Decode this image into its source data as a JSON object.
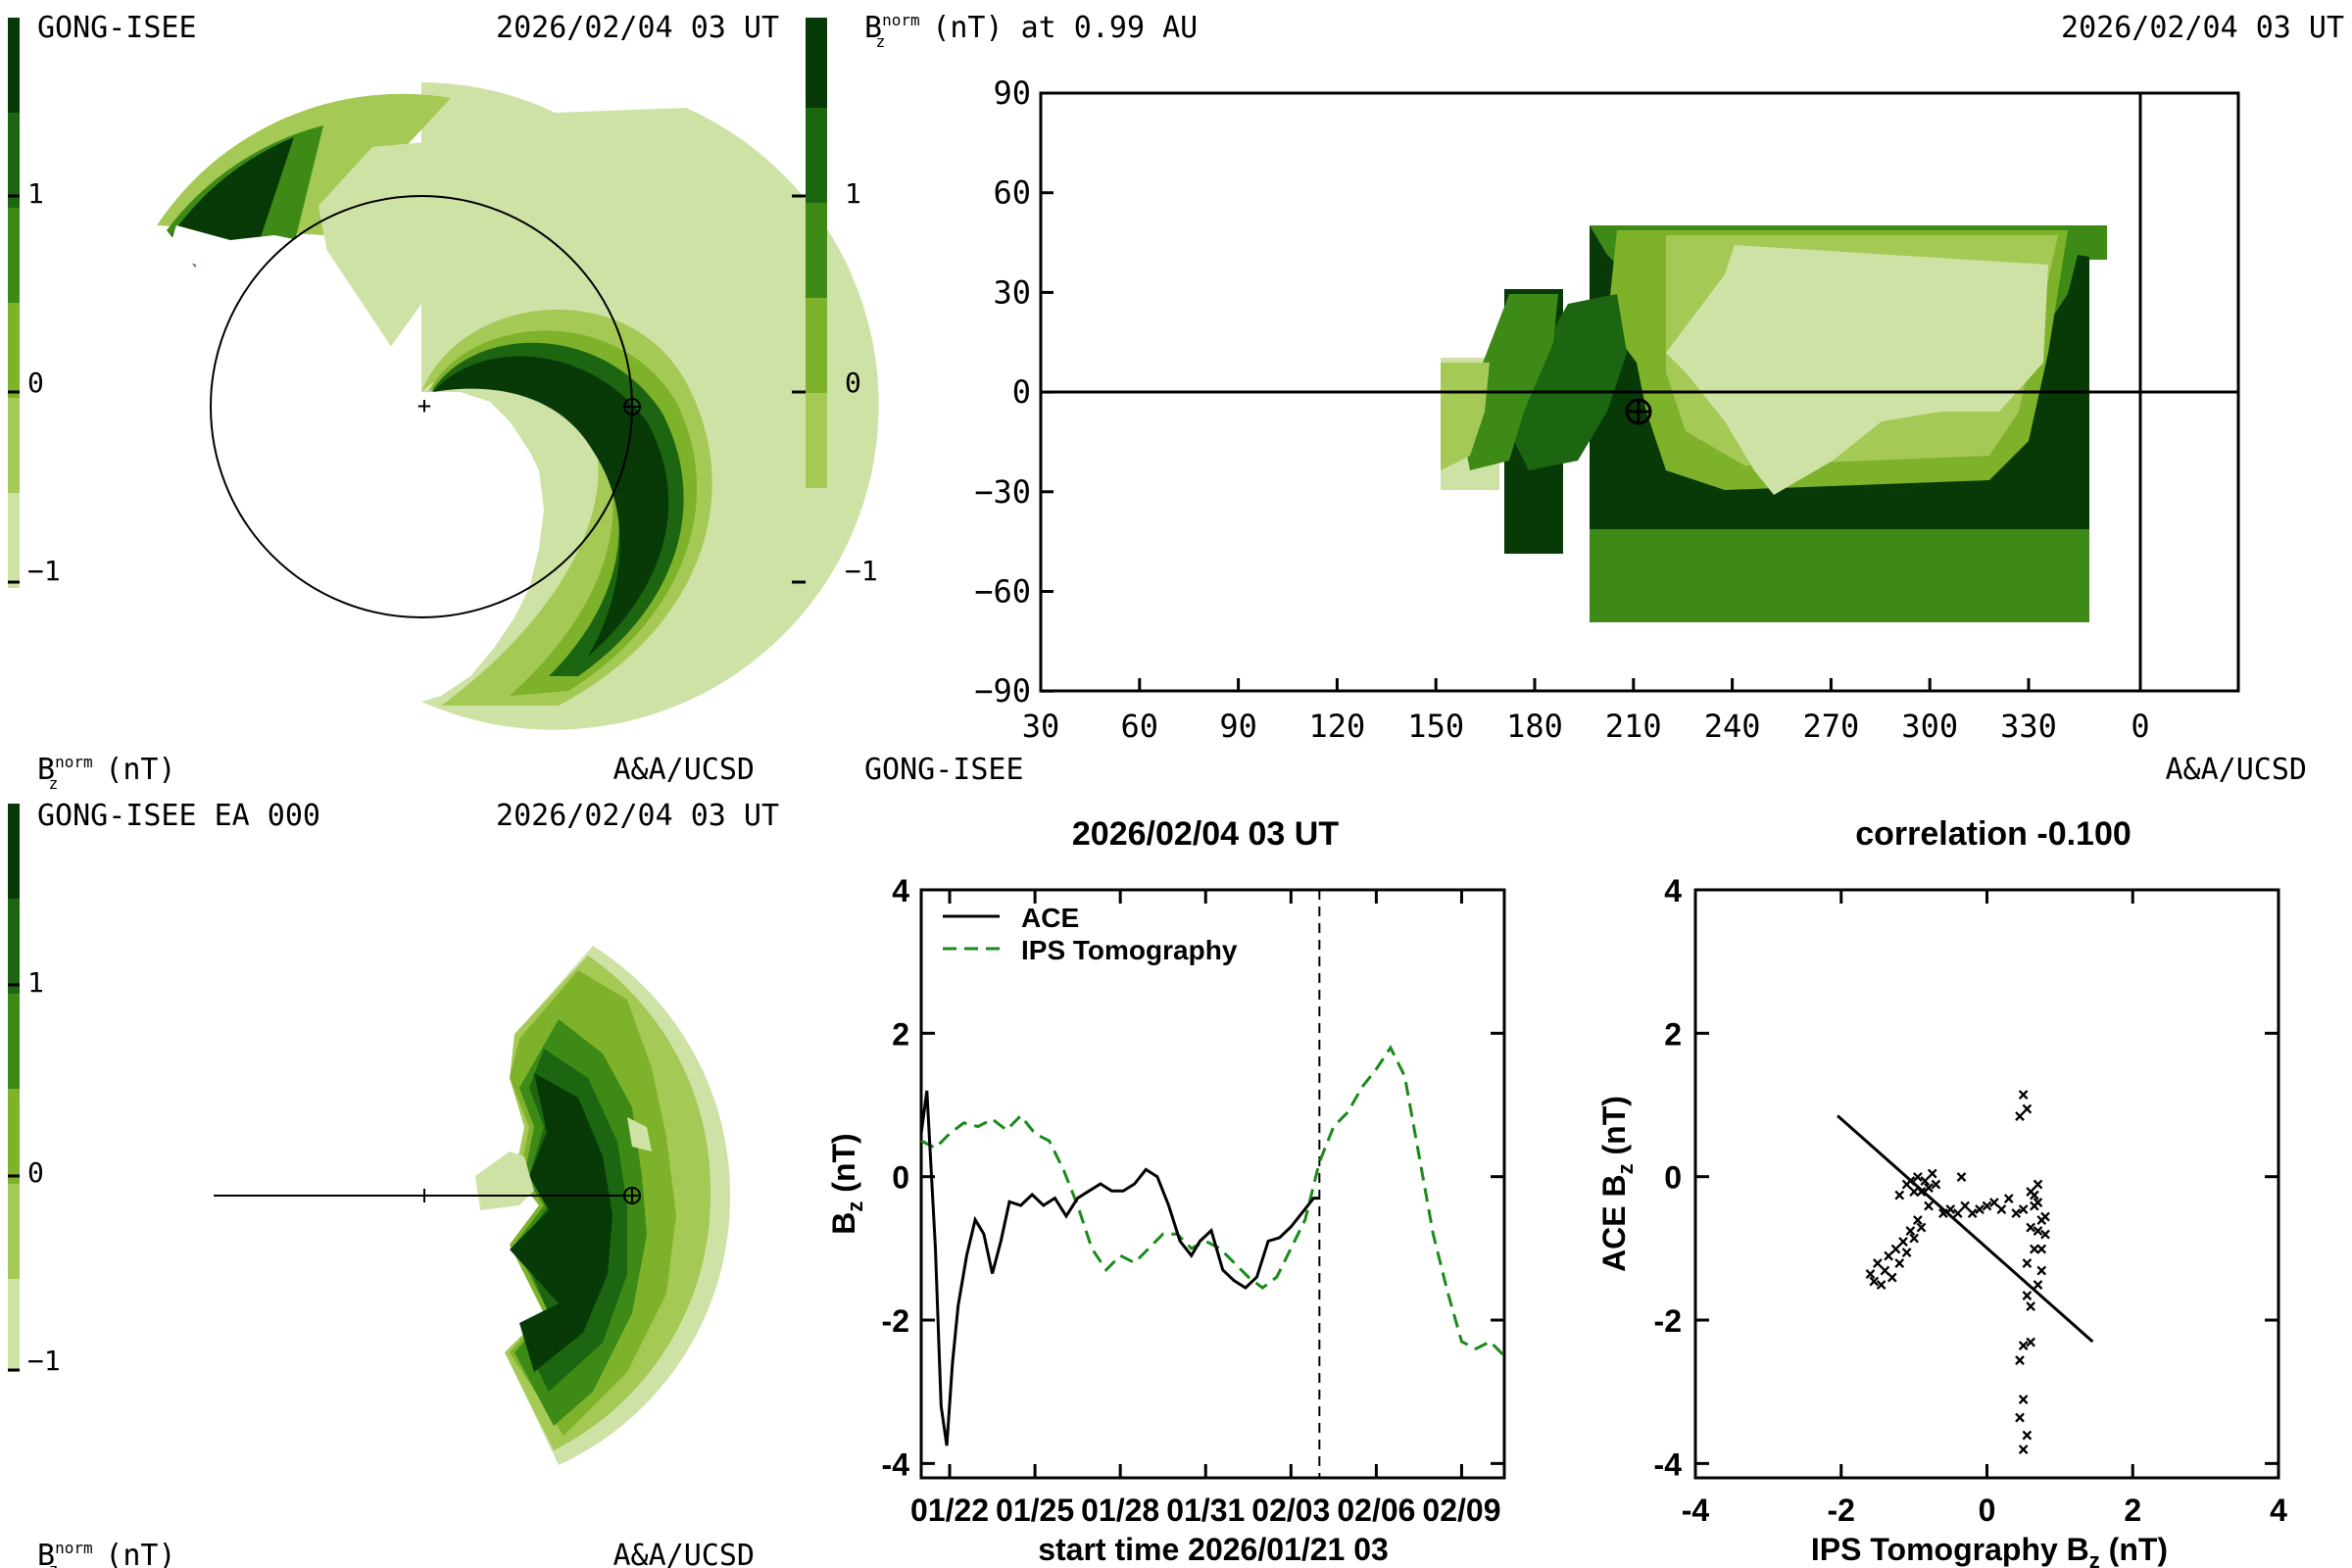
{
  "colors": {
    "c1": "#cfe2a6",
    "c2": "#a5c955",
    "c3": "#7eb22a",
    "c4": "#3e8a17",
    "c5": "#1c6611",
    "c6": "#073a07",
    "bg": "#ffffff",
    "ips_line": "#1a8a1a"
  },
  "top_left": {
    "source": "GONG-ISEE",
    "timestamp": "2026/02/04 03 UT",
    "colorbar_ticks": [
      "1",
      "0",
      "−1"
    ],
    "units_label_b": "B",
    "units_label_sup": "norm",
    "units_label_sub": "z",
    "units_label_tail": " (nT)",
    "credit": "A&A/UCSD"
  },
  "top_right": {
    "title_b": "B",
    "title_sup": "norm",
    "title_sub": "z",
    "title_tail": " (nT) at 0.99 AU",
    "timestamp": "2026/02/04 03 UT",
    "colorbar_ticks": [
      "1",
      "0",
      "−1"
    ],
    "source": "GONG-ISEE",
    "credit": "A&A/UCSD",
    "x_ticks": [
      "30",
      "60",
      "90",
      "120",
      "150",
      "180",
      "210",
      "240",
      "270",
      "300",
      "330",
      "0"
    ],
    "y_ticks": [
      "90",
      "60",
      "30",
      "0",
      "−30",
      "−60",
      "−90"
    ]
  },
  "bottom_left": {
    "source": "GONG-ISEE EA 000",
    "timestamp": "2026/02/04 03 UT",
    "colorbar_ticks": [
      "1",
      "0",
      "−1"
    ],
    "units_label_b": "B",
    "units_label_sup": "norm",
    "units_label_sub": "z",
    "units_label_tail": " (nT)",
    "credit": "A&A/UCSD"
  },
  "chart_data": [
    {
      "type": "line",
      "title": "2026/02/04 03 UT",
      "xlabel": "start time 2026/01/21 03",
      "ylabel_main": "B",
      "ylabel_sub": "z",
      "ylabel_tail": " (nT)",
      "xlim_days": [
        0,
        20.5
      ],
      "ylim": [
        -4.2,
        4
      ],
      "y_ticks": [
        "4",
        "2",
        "0",
        "-2",
        "-4"
      ],
      "x_ticks": [
        "01/22",
        "01/25",
        "01/28",
        "01/31",
        "02/03",
        "02/06",
        "02/09"
      ],
      "x_tick_days": [
        1,
        4,
        7,
        10,
        13,
        16,
        19
      ],
      "now_day": 14.0,
      "legend": [
        "ACE",
        "IPS Tomography"
      ],
      "series": [
        {
          "name": "ACE",
          "style": "solid",
          "x": [
            0,
            0.2,
            0.5,
            0.7,
            0.9,
            1.1,
            1.3,
            1.6,
            1.9,
            2.2,
            2.5,
            2.8,
            3.1,
            3.5,
            3.9,
            4.3,
            4.7,
            5.1,
            5.5,
            5.9,
            6.3,
            6.7,
            7.1,
            7.5,
            7.9,
            8.3,
            8.7,
            9.1,
            9.5,
            9.8,
            10.2,
            10.6,
            11.0,
            11.4,
            11.8,
            12.2,
            12.6,
            13.0,
            13.4,
            13.8,
            14.0
          ],
          "y": [
            0.6,
            1.2,
            -1.0,
            -3.2,
            -3.75,
            -2.6,
            -1.8,
            -1.1,
            -0.6,
            -0.8,
            -1.35,
            -0.9,
            -0.35,
            -0.4,
            -0.25,
            -0.4,
            -0.3,
            -0.55,
            -0.3,
            -0.2,
            -0.1,
            -0.2,
            -0.2,
            -0.1,
            0.1,
            0.0,
            -0.4,
            -0.9,
            -1.1,
            -0.9,
            -0.75,
            -1.3,
            -1.45,
            -1.55,
            -1.4,
            -0.9,
            -0.85,
            -0.7,
            -0.5,
            -0.3,
            -0.3
          ]
        },
        {
          "name": "IPS Tomography",
          "style": "dashed",
          "x": [
            0,
            0.5,
            1.0,
            1.5,
            2.0,
            2.5,
            3.0,
            3.5,
            4.0,
            4.5,
            5.0,
            5.5,
            6.0,
            6.5,
            7.0,
            7.5,
            8.0,
            8.5,
            9.0,
            9.5,
            10.0,
            10.5,
            11.0,
            11.5,
            12.0,
            12.5,
            13.0,
            13.5,
            14.0,
            14.5,
            15.0,
            15.5,
            16.0,
            16.5,
            17.0,
            17.5,
            18.0,
            18.5,
            19.0,
            19.5,
            20.0,
            20.5
          ],
          "y": [
            0.5,
            0.4,
            0.6,
            0.75,
            0.7,
            0.8,
            0.65,
            0.85,
            0.6,
            0.5,
            0.1,
            -0.4,
            -1.0,
            -1.3,
            -1.1,
            -1.2,
            -1.0,
            -0.8,
            -0.8,
            -1.0,
            -0.9,
            -1.0,
            -1.2,
            -1.4,
            -1.55,
            -1.4,
            -1.0,
            -0.6,
            0.2,
            0.7,
            0.9,
            1.25,
            1.5,
            1.8,
            1.4,
            0.3,
            -0.8,
            -1.6,
            -2.3,
            -2.4,
            -2.3,
            -2.5
          ]
        }
      ]
    },
    {
      "type": "scatter",
      "title": "correlation -0.100",
      "xlabel_main": "IPS Tomography B",
      "xlabel_sub": "z",
      "xlabel_tail": " (nT)",
      "ylabel_main": "ACE B",
      "ylabel_sub": "z",
      "ylabel_tail": " (nT)",
      "xlim": [
        -4,
        4
      ],
      "ylim": [
        -4.2,
        4
      ],
      "x_ticks": [
        "-4",
        "-2",
        "0",
        "2",
        "4"
      ],
      "x_tick_vals": [
        -4,
        -2,
        0,
        2,
        4
      ],
      "y_ticks": [
        "4",
        "2",
        "0",
        "-2",
        "-4"
      ],
      "y_tick_vals": [
        4,
        2,
        0,
        -2,
        -4
      ],
      "fit_line": {
        "x": [
          -2.05,
          1.45
        ],
        "y": [
          0.85,
          -2.3
        ]
      },
      "points": [
        [
          -1.6,
          -1.35
        ],
        [
          -1.55,
          -1.45
        ],
        [
          -1.5,
          -1.2
        ],
        [
          -1.45,
          -1.5
        ],
        [
          -1.4,
          -1.3
        ],
        [
          -1.35,
          -1.1
        ],
        [
          -1.3,
          -1.4
        ],
        [
          -1.25,
          -1.0
        ],
        [
          -1.2,
          -1.2
        ],
        [
          -1.15,
          -0.9
        ],
        [
          -1.1,
          -1.05
        ],
        [
          -1.05,
          -0.75
        ],
        [
          -1.0,
          -0.85
        ],
        [
          -0.95,
          -0.6
        ],
        [
          -0.9,
          -0.7
        ],
        [
          -1.0,
          -0.2
        ],
        [
          -1.1,
          -0.1
        ],
        [
          -1.2,
          -0.25
        ],
        [
          -0.95,
          0.0
        ],
        [
          -0.85,
          -0.05
        ],
        [
          -0.8,
          -0.15
        ],
        [
          -0.75,
          0.05
        ],
        [
          -0.7,
          -0.1
        ],
        [
          -0.9,
          -0.2
        ],
        [
          -1.05,
          -0.05
        ],
        [
          -0.8,
          -0.4
        ],
        [
          -0.6,
          -0.5
        ],
        [
          -0.5,
          -0.45
        ],
        [
          -0.4,
          -0.5
        ],
        [
          -0.3,
          -0.4
        ],
        [
          -0.2,
          -0.5
        ],
        [
          -0.1,
          -0.45
        ],
        [
          0.0,
          -0.4
        ],
        [
          0.1,
          -0.35
        ],
        [
          0.2,
          -0.45
        ],
        [
          0.3,
          -0.3
        ],
        [
          0.4,
          -0.5
        ],
        [
          0.5,
          -0.45
        ],
        [
          0.6,
          -0.2
        ],
        [
          0.7,
          -0.35
        ],
        [
          0.75,
          -0.6
        ],
        [
          0.8,
          -0.8
        ],
        [
          0.65,
          -1.0
        ],
        [
          0.75,
          -1.3
        ],
        [
          0.7,
          -1.5
        ],
        [
          0.6,
          -0.7
        ],
        [
          0.55,
          -1.2
        ],
        [
          0.7,
          -0.1
        ],
        [
          0.65,
          -0.4
        ],
        [
          -0.35,
          0.0
        ],
        [
          0.5,
          1.15
        ],
        [
          0.55,
          0.95
        ],
        [
          0.45,
          0.85
        ],
        [
          0.55,
          -1.65
        ],
        [
          0.5,
          -2.35
        ],
        [
          0.45,
          -2.55
        ],
        [
          0.5,
          -3.1
        ],
        [
          0.45,
          -3.35
        ],
        [
          0.55,
          -3.6
        ],
        [
          0.5,
          -3.8
        ],
        [
          0.6,
          -2.3
        ],
        [
          0.6,
          -1.8
        ],
        [
          0.75,
          -1.0
        ],
        [
          0.8,
          -0.55
        ],
        [
          0.7,
          -0.75
        ],
        [
          0.65,
          -0.25
        ]
      ]
    }
  ]
}
